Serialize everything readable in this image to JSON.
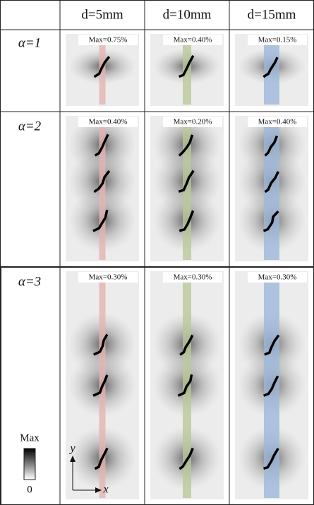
{
  "table": {
    "header": [
      "d=5mm",
      "d=10mm",
      "d=15mm"
    ],
    "rows": [
      {
        "label": "α=1",
        "cells": [
          "Max=0.75%",
          "Max=0.40%",
          "Max=0.15%"
        ]
      },
      {
        "label": "α=2",
        "cells": [
          "Max=0.40%",
          "Max=0.20%",
          "Max=0.40%"
        ]
      },
      {
        "label": "α=3",
        "cells": [
          "Max=0.30%",
          "Max=0.30%",
          "Max=0.30%"
        ]
      }
    ]
  },
  "legend": {
    "top": "Max",
    "bottom": "0"
  },
  "axes": {
    "x": "x",
    "y": "y"
  }
}
